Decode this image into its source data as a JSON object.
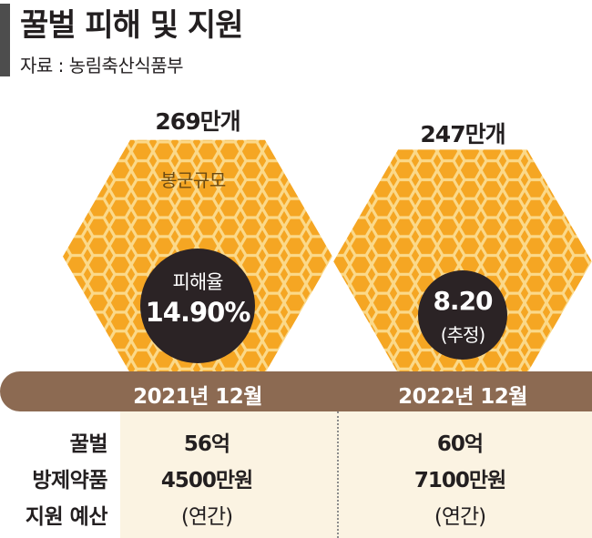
{
  "header": {
    "title": "꿀벌 피해 및 지원",
    "source": "자료 : 농림축산식품부"
  },
  "colors": {
    "honey": "#f5a623",
    "comb_line": "#fbd98a",
    "circle": "#2b2325",
    "band": "#8c6a52",
    "table_bg": "#fbf3e2"
  },
  "chart_data": {
    "type": "table",
    "periods": [
      {
        "date": "2021년 12월",
        "colonies": "269만개",
        "damage_label": "피해율",
        "damage_rate": "14.90%",
        "support": [
          "56억",
          "4500만원",
          "(연간)"
        ]
      },
      {
        "date": "2022년 12월",
        "colonies": "247만개",
        "damage_label": "",
        "damage_rate": "8.20",
        "damage_note": "(추정)",
        "support": [
          "60억",
          "7100만원",
          "(연간)"
        ]
      }
    ],
    "colony_values": [
      269,
      247
    ],
    "colony_unit": "만개",
    "hex_label": "봉군규모",
    "support_label_lines": [
      "꿀벌",
      "방제약품",
      "지원 예산"
    ]
  }
}
